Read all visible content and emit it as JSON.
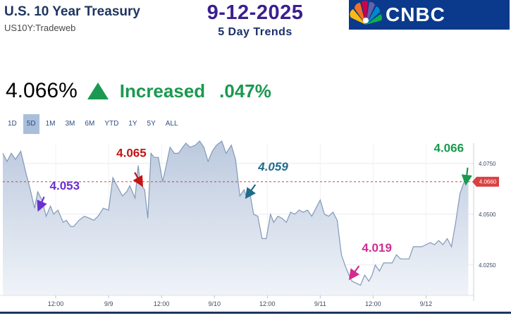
{
  "header": {
    "title": "U.S. 10 Year Treasury",
    "subtitle": "US10Y:Tradeweb",
    "date": "9-12-2025",
    "trend_label": "5 Day Trends",
    "logo_text": "CNBC"
  },
  "quote": {
    "price": "4.066%",
    "direction": "Increased",
    "change": ".047%",
    "accent_color": "#1a9950"
  },
  "ranges": {
    "items": [
      "1D",
      "5D",
      "1M",
      "3M",
      "6M",
      "YTD",
      "1Y",
      "5Y",
      "ALL"
    ],
    "active": "5D"
  },
  "chart_data": {
    "type": "area",
    "title": "",
    "xlabel": "",
    "ylabel": "",
    "ylim": [
      4.01,
      4.085
    ],
    "y_ticks": [
      "4.0750",
      "4.0500",
      "4.0250"
    ],
    "y_tick_values": [
      4.075,
      4.05,
      4.025
    ],
    "x_ticks": [
      "12:00",
      "9/9",
      "12:00",
      "9/10",
      "12:00",
      "9/11",
      "12:00",
      "9/12"
    ],
    "x_tick_positions": [
      0.5,
      1.0,
      1.5,
      2.0,
      2.5,
      3.0,
      3.5,
      4.0
    ],
    "xlim": [
      0.0,
      4.45
    ],
    "reference_line": {
      "value": 4.066,
      "label": "4.0660",
      "color": "#d94040"
    },
    "series": [
      {
        "color": "#8298b8",
        "x": [
          0.0,
          0.04,
          0.08,
          0.12,
          0.17,
          0.22,
          0.26,
          0.3,
          0.33,
          0.37,
          0.41,
          0.45,
          0.48,
          0.52,
          0.57,
          0.6,
          0.64,
          0.67,
          0.72,
          0.77,
          0.82,
          0.86,
          0.9,
          0.95,
          1.0,
          1.04,
          1.08,
          1.13,
          1.17,
          1.2,
          1.25,
          1.28,
          1.3,
          1.34,
          1.37,
          1.4,
          1.43,
          1.47,
          1.51,
          1.54,
          1.58,
          1.62,
          1.66,
          1.7,
          1.73,
          1.77,
          1.82,
          1.86,
          1.9,
          1.94,
          1.98,
          2.02,
          2.07,
          2.11,
          2.16,
          2.2,
          2.24,
          2.28,
          2.3,
          2.34,
          2.37,
          2.41,
          2.45,
          2.49,
          2.53,
          2.56,
          2.6,
          2.64,
          2.68,
          2.72,
          2.76,
          2.8,
          2.84,
          2.88,
          2.92,
          2.96,
          3.0,
          3.04,
          3.08,
          3.12,
          3.16,
          3.2,
          3.24,
          3.28,
          3.3,
          3.34,
          3.38,
          3.42,
          3.46,
          3.49,
          3.52,
          3.56,
          3.6,
          3.64,
          3.68,
          3.72,
          3.76,
          3.8,
          3.84,
          3.88,
          3.92,
          3.96,
          4.0,
          4.04,
          4.08,
          4.12,
          4.16,
          4.2,
          4.24,
          4.28,
          4.32,
          4.36,
          4.4
        ],
        "y": [
          4.08,
          4.076,
          4.08,
          4.077,
          4.081,
          4.07,
          4.062,
          4.053,
          4.061,
          4.057,
          4.049,
          4.054,
          4.05,
          4.052,
          4.046,
          4.047,
          4.044,
          4.044,
          4.047,
          4.049,
          4.048,
          4.047,
          4.049,
          4.053,
          4.052,
          4.068,
          4.064,
          4.059,
          4.061,
          4.064,
          4.058,
          4.074,
          4.065,
          4.062,
          4.048,
          4.08,
          4.078,
          4.078,
          4.066,
          4.073,
          4.083,
          4.08,
          4.08,
          4.083,
          4.085,
          4.083,
          4.084,
          4.086,
          4.083,
          4.076,
          4.081,
          4.084,
          4.086,
          4.08,
          4.084,
          4.077,
          4.059,
          4.062,
          4.059,
          4.059,
          4.05,
          4.049,
          4.038,
          4.038,
          4.05,
          4.046,
          4.049,
          4.048,
          4.046,
          4.051,
          4.05,
          4.052,
          4.051,
          4.052,
          4.049,
          4.053,
          4.057,
          4.05,
          4.049,
          4.051,
          4.047,
          4.03,
          4.024,
          4.019,
          4.017,
          4.016,
          4.015,
          4.02,
          4.017,
          4.02,
          4.025,
          4.022,
          4.026,
          4.026,
          4.026,
          4.03,
          4.028,
          4.028,
          4.028,
          4.034,
          4.034,
          4.034,
          4.035,
          4.036,
          4.035,
          4.037,
          4.035,
          4.038,
          4.034,
          4.046,
          4.06,
          4.066,
          4.066
        ]
      }
    ],
    "annotations": [
      {
        "text": "4.053",
        "x": 0.35,
        "y": 4.053,
        "color": "#6a2fd1"
      },
      {
        "text": "4.065",
        "x": 1.3,
        "y": 4.065,
        "color": "#c41414"
      },
      {
        "text": "4.059",
        "x": 2.32,
        "y": 4.059,
        "color": "#1f6b8c"
      },
      {
        "text": "4.019",
        "x": 3.3,
        "y": 4.019,
        "color": "#d12c8e"
      },
      {
        "text": "4.066",
        "x": 4.38,
        "y": 4.066,
        "color": "#1a9950"
      }
    ]
  }
}
